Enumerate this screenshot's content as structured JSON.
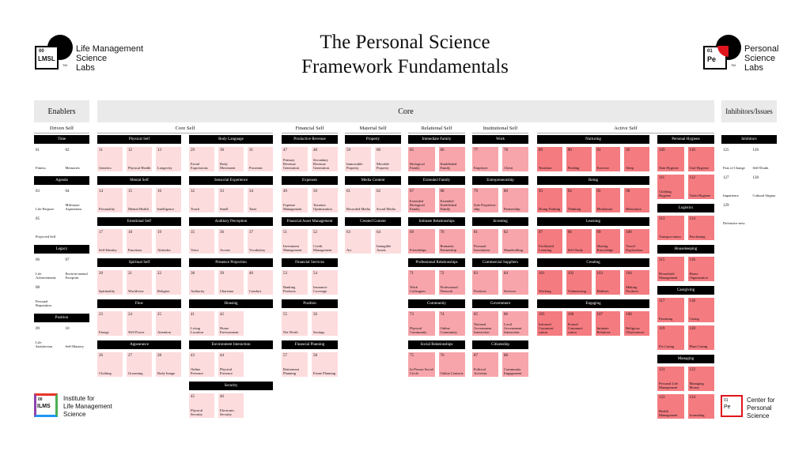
{
  "title_line1": "The Personal Science",
  "title_line2": "Framework Fundamentals",
  "logo_left": {
    "badge_num": "00",
    "badge_code": "LMSL",
    "tm": "TM",
    "text": [
      "Life Management",
      "Science",
      "Labs"
    ]
  },
  "logo_right": {
    "badge_num": "01",
    "badge_code": "Pe",
    "tm": "TM",
    "text": [
      "Personal",
      "Science",
      "Labs"
    ]
  },
  "footer_left": {
    "badge_num": "00",
    "badge_code": "ILMS",
    "text": [
      "Institute for",
      "Life Management",
      "Science"
    ]
  },
  "footer_right": {
    "badge_num": "01",
    "badge_code": "Pe",
    "text": [
      "Center for",
      "Personal",
      "Science"
    ]
  },
  "sections": {
    "enablers": "Enablers",
    "core": "Core",
    "inhibitors": "Inhibitors/Issues"
  },
  "columns": [
    {
      "title": "Driven Self",
      "groups": [
        {
          "name": "Time",
          "tiles": [
            [
              "01",
              "Fitness"
            ],
            [
              "02",
              "Memories"
            ]
          ]
        },
        {
          "name": "Agenda",
          "tiles": [
            [
              "03",
              "Life Purpose"
            ],
            [
              "04",
              "Milestone Aspirations"
            ],
            [
              "05",
              "Projected Self"
            ]
          ]
        },
        {
          "name": "Legacy",
          "tiles": [
            [
              "06",
              "Life Achievements"
            ],
            [
              "07",
              "Environ-mental Footprint"
            ],
            [
              "08",
              "Personal Reputation"
            ]
          ]
        },
        {
          "name": "Position",
          "tiles": [
            [
              "09",
              "Life Satisfaction"
            ],
            [
              "10",
              "Self-Mastery"
            ]
          ]
        }
      ]
    },
    {
      "title": "Core Self",
      "groups": [
        {
          "name": "Physical Self",
          "tiles": [
            [
              "11",
              "Genetics"
            ],
            [
              "12",
              "Physical Health"
            ],
            [
              "13",
              "Longevity"
            ]
          ]
        },
        {
          "name": "Mental Self",
          "tiles": [
            [
              "14",
              "Personality"
            ],
            [
              "15",
              "Mental Health"
            ],
            [
              "16",
              "Intelligence"
            ]
          ]
        },
        {
          "name": "Emotional Self",
          "tiles": [
            [
              "17",
              "Self-Identity"
            ],
            [
              "18",
              "Emotions"
            ],
            [
              "19",
              "Attitudes"
            ]
          ]
        },
        {
          "name": "Spiritual Self",
          "tiles": [
            [
              "20",
              "Spirituality"
            ],
            [
              "21",
              "Worldview"
            ],
            [
              "22",
              "Religion"
            ]
          ]
        },
        {
          "name": "Flow",
          "tiles": [
            [
              "23",
              "Energy"
            ],
            [
              "24",
              "Will Power"
            ],
            [
              "25",
              "Attention"
            ]
          ]
        },
        {
          "name": "Appearance",
          "tiles": [
            [
              "26",
              "Clothing"
            ],
            [
              "27",
              "Grooming"
            ],
            [
              "28",
              "Body Image"
            ]
          ]
        }
      ]
    },
    {
      "title": "",
      "groups": [
        {
          "name": "Body Language",
          "tiles": [
            [
              "29",
              "Facial Expressions"
            ],
            [
              "30",
              "Body Movement"
            ],
            [
              "31",
              "Proxemic"
            ]
          ]
        },
        {
          "name": "Sensorial Experience",
          "tiles": [
            [
              "32",
              "Touch"
            ],
            [
              "33",
              "Smell"
            ],
            [
              "34",
              "Taste"
            ]
          ]
        },
        {
          "name": "Auditory Perception",
          "tiles": [
            [
              "35",
              "Voice"
            ],
            [
              "36",
              "Accent"
            ],
            [
              "37",
              "Vocabulary"
            ]
          ]
        },
        {
          "name": "Presence Projection",
          "tiles": [
            [
              "38",
              "Authority"
            ],
            [
              "39",
              "Charisma"
            ],
            [
              "40",
              "Conduct"
            ]
          ]
        },
        {
          "name": "Housing",
          "tiles": [
            [
              "41",
              "Living Location"
            ],
            [
              "42",
              "Home Environment"
            ]
          ]
        },
        {
          "name": "Environment Interaction",
          "tiles": [
            [
              "43",
              "Online Presence"
            ],
            [
              "44",
              "Physical Presence"
            ]
          ]
        },
        {
          "name": "Security",
          "tiles": [
            [
              "45",
              "Physical Security"
            ],
            [
              "46",
              "Electronic Security"
            ]
          ]
        }
      ]
    },
    {
      "title": "Financial Self",
      "groups": [
        {
          "name": "Productive Revenue",
          "tiles": [
            [
              "47",
              "Primary Revenue Generation"
            ],
            [
              "48",
              "Secondary Revenue Generation"
            ]
          ]
        },
        {
          "name": "Expenses",
          "tiles": [
            [
              "49",
              "Expense Management"
            ],
            [
              "50",
              "Taxation Optimization"
            ]
          ]
        },
        {
          "name": "Financial Asset Management",
          "tiles": [
            [
              "51",
              "Investment Management"
            ],
            [
              "52",
              "Credit Management"
            ]
          ]
        },
        {
          "name": "Financial Services",
          "tiles": [
            [
              "53",
              "Banking Products"
            ],
            [
              "54",
              "Insurance Coverage"
            ]
          ]
        },
        {
          "name": "Position",
          "tiles": [
            [
              "55",
              "Net Worth"
            ],
            [
              "56",
              "Savings"
            ]
          ]
        },
        {
          "name": "Financial Planning",
          "tiles": [
            [
              "57",
              "Retirement Planning"
            ],
            [
              "58",
              "Estate Planning"
            ]
          ]
        }
      ]
    },
    {
      "title": "Material Self",
      "groups": [
        {
          "name": "Property",
          "tiles": [
            [
              "59",
              "Immovable Property"
            ],
            [
              "60",
              "Movable Property"
            ]
          ]
        },
        {
          "name": "Media Content",
          "tiles": [
            [
              "61",
              "Recorded Media"
            ],
            [
              "62",
              "Social Media"
            ]
          ]
        },
        {
          "name": "Created Content",
          "tiles": [
            [
              "63",
              "Art"
            ],
            [
              "64",
              "Intangible Assets"
            ]
          ]
        }
      ]
    },
    {
      "title": "Relational Self",
      "groups": [
        {
          "name": "Immediate Family",
          "tiles": [
            [
              "65",
              "Biological Family"
            ],
            [
              "66",
              "Established Family"
            ]
          ]
        },
        {
          "name": "Extended Family",
          "tiles": [
            [
              "67",
              "Extended Biological Family"
            ],
            [
              "68",
              "Extended Established Family"
            ]
          ]
        },
        {
          "name": "Intimate Relationships",
          "tiles": [
            [
              "69",
              "Friendships"
            ],
            [
              "70",
              "Romantic Partnership"
            ]
          ]
        },
        {
          "name": "Professional Relationships",
          "tiles": [
            [
              "71",
              "Work Colleagues"
            ],
            [
              "72",
              "Professional Network"
            ]
          ]
        },
        {
          "name": "Community",
          "tiles": [
            [
              "73",
              "Physical Community"
            ],
            [
              "74",
              "Online Community"
            ]
          ]
        },
        {
          "name": "Social Relationships",
          "tiles": [
            [
              "75",
              "In-Person Social Circle"
            ],
            [
              "76",
              "Online Contacts"
            ]
          ]
        }
      ]
    },
    {
      "title": "Institutional Self",
      "groups": [
        {
          "name": "Work",
          "tiles": [
            [
              "77",
              "Employer"
            ],
            [
              "78",
              "Client"
            ]
          ]
        },
        {
          "name": "Entrepreneurship",
          "tiles": [
            [
              "79",
              "Sole Proprietor-ship"
            ],
            [
              "80",
              "Partnership"
            ]
          ]
        },
        {
          "name": "Investing",
          "tiles": [
            [
              "81",
              "Personal Investment"
            ],
            [
              "82",
              "Shareholding"
            ]
          ]
        },
        {
          "name": "Commercial Suppliers",
          "tiles": [
            [
              "83",
              "Products"
            ],
            [
              "84",
              "Services"
            ]
          ]
        },
        {
          "name": "Government",
          "tiles": [
            [
              "85",
              "National Government Interaction"
            ],
            [
              "86",
              "Local Government Interaction"
            ]
          ]
        },
        {
          "name": "Citizenship",
          "tiles": [
            [
              "87",
              "Political Activism"
            ],
            [
              "88",
              "Community Engagement"
            ]
          ]
        }
      ]
    },
    {
      "title": "Active Self",
      "groups": [
        {
          "name": "Nurturing",
          "tiles": [
            [
              "89",
              "Nutrition"
            ],
            [
              "90",
              "Feeding"
            ],
            [
              "91",
              "Exercise"
            ],
            [
              "92",
              "Sleep"
            ]
          ]
        },
        {
          "name": "Being",
          "tiles": [
            [
              "93",
              "Doing Nothing"
            ],
            [
              "94",
              "Thinking"
            ],
            [
              "95",
              "Meditation"
            ],
            [
              "96",
              "Relaxation"
            ]
          ]
        },
        {
          "name": "Learning",
          "tiles": [
            [
              "97",
              "Facilitated Learning"
            ],
            [
              "98",
              "Self-Study"
            ],
            [
              "99",
              "Sharing Knowledge"
            ],
            [
              "100",
              "Travel Exploration"
            ]
          ]
        },
        {
          "name": "Creating",
          "tiles": [
            [
              "101",
              "Working"
            ],
            [
              "102",
              "Volunteering"
            ],
            [
              "103",
              "Hobbies"
            ],
            [
              "104",
              "Making Products"
            ]
          ]
        },
        {
          "name": "Engaging",
          "tiles": [
            [
              "105",
              "Informal Communi-cation"
            ],
            [
              "106",
              "Formal Communi-cation"
            ],
            [
              "107",
              "Intimate Relations"
            ],
            [
              "108",
              "Religious Observances"
            ]
          ]
        }
      ]
    },
    {
      "title": "",
      "groups": [
        {
          "name": "Personal Hygiene",
          "tiles": [
            [
              "109",
              "Skin Hygiene"
            ],
            [
              "110",
              "Oral Hygiene"
            ],
            [
              "111",
              "Clothing Hygiene"
            ],
            [
              "112",
              "Toilet Hygiene"
            ]
          ]
        },
        {
          "name": "Logistics",
          "tiles": [
            [
              "113",
              "Transpor-tation"
            ],
            [
              "114",
              "Purchasing"
            ]
          ]
        },
        {
          "name": "Housekeeping",
          "tiles": [
            [
              "115",
              "Household Management"
            ],
            [
              "116",
              "Home Organization"
            ]
          ]
        },
        {
          "name": "Caregiving",
          "tiles": [
            [
              "117",
              "Parenting"
            ],
            [
              "118",
              "Caring"
            ],
            [
              "119",
              "Pet Caring"
            ],
            [
              "120",
              "Plant Caring"
            ]
          ]
        },
        {
          "name": "Managing",
          "tiles": [
            [
              "121",
              "Personal Life Management"
            ],
            [
              "122",
              "Managing Money"
            ],
            [
              "123",
              "Health Management"
            ],
            [
              "124",
              "Journaling"
            ]
          ]
        }
      ]
    },
    {
      "title": "",
      "groups": [
        {
          "name": "Inhibitors",
          "tiles": [
            [
              "125",
              "Fear of Change"
            ],
            [
              "126",
              "Self-Doubt"
            ],
            [
              "127",
              "Impatience"
            ],
            [
              "128",
              "Cultural Stigma"
            ],
            [
              "129",
              "Defensive-ness"
            ]
          ]
        }
      ]
    }
  ]
}
